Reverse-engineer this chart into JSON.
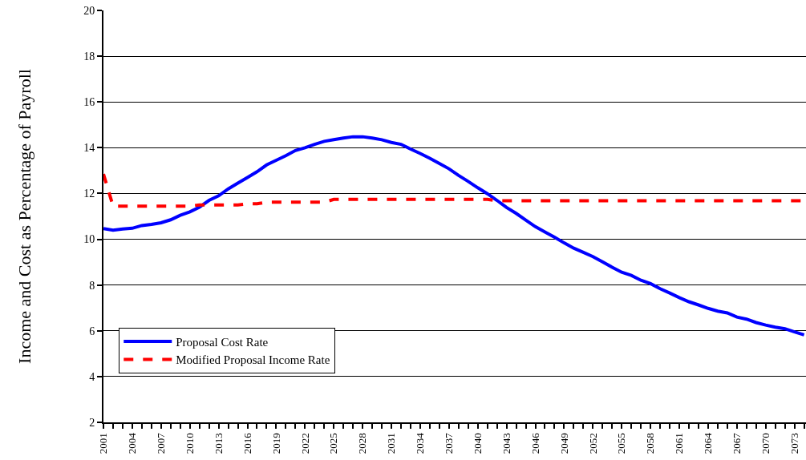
{
  "chart_data": {
    "type": "line",
    "ylabel": "Income and Cost as Percentage of Payroll",
    "categories": [
      "2001",
      null,
      null,
      "2004",
      null,
      null,
      "2007",
      null,
      null,
      "2010",
      null,
      null,
      "2013",
      null,
      null,
      "2016",
      null,
      null,
      "2019",
      null,
      null,
      "2022",
      null,
      null,
      "2025",
      null,
      null,
      "2028",
      null,
      null,
      "2031",
      null,
      null,
      "2034",
      null,
      null,
      "2037",
      null,
      null,
      "2040",
      null,
      null,
      "2043",
      null,
      null,
      "2046",
      null,
      null,
      "2049",
      null,
      null,
      "2052",
      null,
      null,
      "2055",
      null,
      null,
      "2058",
      null,
      null,
      "2061",
      null,
      null,
      "2064",
      null,
      null,
      "2067",
      null,
      null,
      "2070",
      null,
      null,
      "2073",
      null
    ],
    "series": [
      {
        "name": "Proposal Cost Rate",
        "color": "#0000ff",
        "line_style": "solid",
        "values": [
          10.47,
          10.4,
          10.45,
          10.48,
          10.6,
          10.65,
          10.72,
          10.85,
          11.05,
          11.2,
          11.4,
          11.7,
          11.9,
          12.2,
          12.45,
          12.7,
          12.95,
          13.25,
          13.45,
          13.65,
          13.88,
          14.0,
          14.15,
          14.28,
          14.35,
          14.42,
          14.48,
          14.48,
          14.42,
          14.35,
          14.23,
          14.15,
          13.94,
          13.75,
          13.54,
          13.31,
          13.08,
          12.79,
          12.53,
          12.25,
          11.99,
          11.7,
          11.39,
          11.13,
          10.84,
          10.55,
          10.32,
          10.09,
          9.84,
          9.61,
          9.43,
          9.24,
          9.01,
          8.78,
          8.56,
          8.42,
          8.21,
          8.06,
          7.84,
          7.65,
          7.45,
          7.27,
          7.13,
          6.98,
          6.86,
          6.78,
          6.6,
          6.51,
          6.36,
          6.25,
          6.16,
          6.09,
          5.95,
          5.82
        ]
      },
      {
        "name": "Modified Proposal Income Rate",
        "color": "#ff0000",
        "line_style": "dashed",
        "values": [
          12.85,
          11.45,
          11.45,
          11.45,
          11.45,
          11.45,
          11.45,
          11.45,
          11.45,
          11.45,
          11.5,
          11.5,
          11.5,
          11.5,
          11.5,
          11.55,
          11.55,
          11.62,
          11.62,
          11.62,
          11.62,
          11.62,
          11.62,
          11.62,
          11.74,
          11.74,
          11.74,
          11.74,
          11.74,
          11.74,
          11.74,
          11.74,
          11.74,
          11.74,
          11.74,
          11.74,
          11.74,
          11.74,
          11.74,
          11.74,
          11.74,
          11.68,
          11.68,
          11.68,
          11.68,
          11.68,
          11.68,
          11.68,
          11.68,
          11.68,
          11.68,
          11.68,
          11.68,
          11.68,
          11.68,
          11.68,
          11.68,
          11.68,
          11.68,
          11.68,
          11.68,
          11.68,
          11.68,
          11.68,
          11.68,
          11.68,
          11.68,
          11.68,
          11.68,
          11.68,
          11.68,
          11.68,
          11.68,
          11.68
        ]
      }
    ],
    "ylim": [
      2,
      20
    ],
    "yticks": [
      2,
      4,
      6,
      8,
      10,
      12,
      14,
      16,
      18,
      20
    ],
    "grid": "y",
    "legend": "bottom left",
    "marker": "none"
  }
}
